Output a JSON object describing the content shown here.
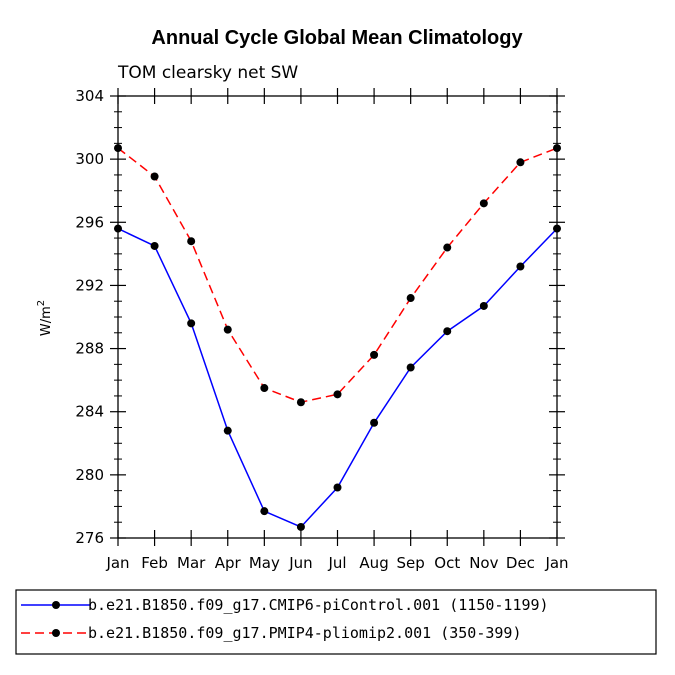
{
  "chart_data": {
    "type": "line",
    "title": "Annual Cycle Global Mean Climatology",
    "subtitle": "TOM clearsky net SW",
    "ylabel": "W/m",
    "ylabel_sup": "2",
    "xlabel": "",
    "categories": [
      "Jan",
      "Feb",
      "Mar",
      "Apr",
      "May",
      "Jun",
      "Jul",
      "Aug",
      "Sep",
      "Oct",
      "Nov",
      "Dec",
      "Jan"
    ],
    "ylim": [
      276,
      304
    ],
    "yticks": [
      276,
      280,
      284,
      288,
      292,
      296,
      300,
      304
    ],
    "grid": false,
    "legend_position": "bottom",
    "series": [
      {
        "name": "b.e21.B1850.f09_g17.CMIP6-piControl.001 (1150-1199)",
        "color": "#0000ff",
        "dash": "solid",
        "values": [
          295.6,
          294.5,
          289.6,
          282.8,
          277.7,
          276.7,
          279.2,
          283.3,
          286.8,
          289.1,
          290.7,
          293.2,
          295.6
        ]
      },
      {
        "name": "b.e21.B1850.f09_g17.PMIP4-pliomip2.001 (350-399)",
        "color": "#ff0000",
        "dash": "dashed",
        "values": [
          300.7,
          298.9,
          294.8,
          289.2,
          285.5,
          284.6,
          285.1,
          287.6,
          291.2,
          294.4,
          297.2,
          299.8,
          300.7
        ]
      }
    ]
  }
}
